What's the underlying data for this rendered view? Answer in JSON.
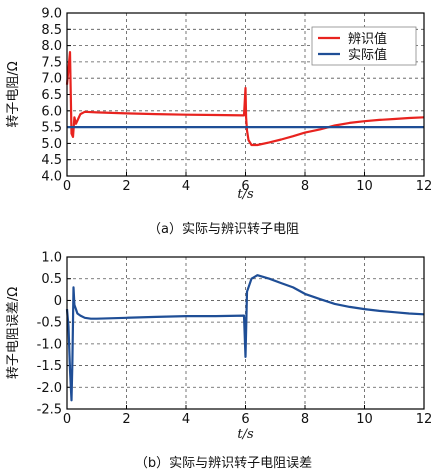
{
  "chart_data": [
    {
      "type": "line",
      "caption": "（a）实际与辨识转子电阻",
      "xlabel": "t/s",
      "ylabel": "转子电阻/Ω",
      "xlim": [
        0,
        12
      ],
      "ylim": [
        4.0,
        9.0
      ],
      "xticks": [
        "0",
        "2",
        "4",
        "6",
        "8",
        "10",
        "12"
      ],
      "yticks": [
        "4.0",
        "4.5",
        "5.0",
        "5.5",
        "6.0",
        "6.5",
        "7.0",
        "7.5",
        "8.0",
        "8.5",
        "9.0"
      ],
      "grid": "dashed",
      "legend_position": "top-right",
      "series": [
        {
          "name": "辨识值",
          "color": "#e8231f",
          "x": [
            0,
            0.1,
            0.15,
            0.2,
            0.25,
            0.3,
            0.35,
            0.45,
            0.6,
            1.0,
            2.0,
            3.0,
            4.0,
            5.0,
            5.95,
            6.0,
            6.02,
            6.05,
            6.1,
            6.2,
            6.4,
            6.8,
            7.2,
            7.6,
            8.0,
            8.5,
            9.0,
            9.5,
            10.0,
            10.5,
            11.0,
            11.5,
            12.0
          ],
          "y": [
            6.8,
            7.8,
            5.3,
            5.2,
            5.8,
            5.6,
            5.7,
            5.9,
            5.97,
            5.95,
            5.92,
            5.9,
            5.88,
            5.87,
            5.86,
            6.7,
            5.8,
            5.4,
            5.1,
            4.95,
            4.95,
            5.03,
            5.12,
            5.22,
            5.33,
            5.43,
            5.55,
            5.63,
            5.68,
            5.72,
            5.75,
            5.78,
            5.8
          ]
        },
        {
          "name": "实际值",
          "color": "#1f4e96",
          "x": [
            0,
            12
          ],
          "y": [
            5.5,
            5.5
          ]
        }
      ]
    },
    {
      "type": "line",
      "caption": "（b）实际与辨识转子电阻误差",
      "xlabel": "t/s",
      "ylabel": "转子电阻误差/Ω",
      "xlim": [
        0,
        12
      ],
      "ylim": [
        -2.5,
        1.0
      ],
      "xticks": [
        "0",
        "2",
        "4",
        "6",
        "8",
        "10",
        "12"
      ],
      "yticks": [
        "-2.5",
        "-2.0",
        "-1.5",
        "-1.0",
        "-0.5",
        "0",
        "0.5",
        "1.0"
      ],
      "grid": "dashed",
      "series": [
        {
          "color": "#1f4e96",
          "x": [
            0,
            0.05,
            0.1,
            0.15,
            0.18,
            0.22,
            0.25,
            0.3,
            0.35,
            0.45,
            0.6,
            0.8,
            1.0,
            2.0,
            3.0,
            4.0,
            5.0,
            5.95,
            6.0,
            6.05,
            6.2,
            6.4,
            6.8,
            7.2,
            7.6,
            8.0,
            8.5,
            9.0,
            9.5,
            10.0,
            10.5,
            11.0,
            11.5,
            12.0
          ],
          "y": [
            -0.2,
            -0.6,
            -1.6,
            -2.3,
            -1.4,
            0.3,
            -0.1,
            -0.2,
            -0.3,
            -0.35,
            -0.4,
            -0.42,
            -0.42,
            -0.4,
            -0.38,
            -0.36,
            -0.36,
            -0.35,
            -1.3,
            0.2,
            0.5,
            0.58,
            0.5,
            0.4,
            0.3,
            0.15,
            0.03,
            -0.08,
            -0.15,
            -0.2,
            -0.24,
            -0.27,
            -0.3,
            -0.32
          ]
        }
      ]
    }
  ]
}
